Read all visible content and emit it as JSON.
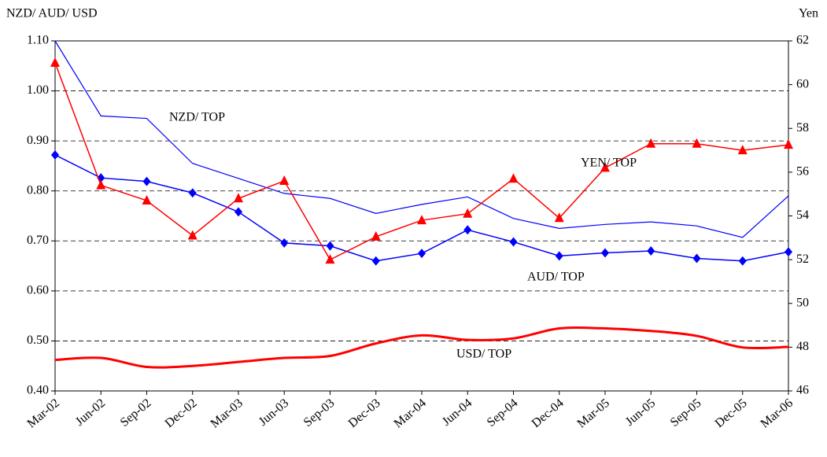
{
  "chart_data": {
    "type": "line",
    "ylabel": "NZD/ AUD/ USD",
    "y2label": "Yen",
    "categories": [
      "Mar-02",
      "Jun-02",
      "Sep-02",
      "Dec-02",
      "Mar-03",
      "Jun-03",
      "Sep-03",
      "Dec-03",
      "Mar-04",
      "Jun-04",
      "Sep-04",
      "Dec-04",
      "Mar-05",
      "Jun-05",
      "Sep-05",
      "Dec-05",
      "Mar-06"
    ],
    "ylim": [
      0.4,
      1.1
    ],
    "yticks": [
      {
        "value": 0.4,
        "label": "0.40"
      },
      {
        "value": 0.5,
        "label": "0.50"
      },
      {
        "value": 0.6,
        "label": "0.60"
      },
      {
        "value": 0.7,
        "label": "0.70"
      },
      {
        "value": 0.8,
        "label": "0.80"
      },
      {
        "value": 0.9,
        "label": "0.90"
      },
      {
        "value": 1.0,
        "label": "1.00"
      },
      {
        "value": 1.1,
        "label": "1.10"
      }
    ],
    "y2lim": [
      46,
      62
    ],
    "y2ticks": [
      46,
      48,
      50,
      52,
      54,
      56,
      58,
      60,
      62
    ],
    "grid": true,
    "series": [
      {
        "name": "NZD/ TOP",
        "color": "#0000ff",
        "line_width": 1.2,
        "marker": null,
        "values": [
          1.1,
          0.95,
          0.945,
          0.855,
          0.825,
          0.795,
          0.785,
          0.755,
          0.773,
          0.788,
          0.745,
          0.725,
          0.733,
          0.738,
          0.73,
          0.707,
          0.79
        ]
      },
      {
        "name": "AUD/ TOP",
        "color": "#0000ff",
        "line_width": 1.5,
        "marker": "diamond",
        "values": [
          0.872,
          0.826,
          0.819,
          0.796,
          0.758,
          0.696,
          0.69,
          0.66,
          0.675,
          0.722,
          0.698,
          0.67,
          0.676,
          0.68,
          0.665,
          0.66,
          0.678
        ]
      },
      {
        "name": "USD/ TOP",
        "color": "#ff0000",
        "line_width": 3,
        "marker": null,
        "smooth": true,
        "values": [
          0.462,
          0.466,
          0.448,
          0.45,
          0.458,
          0.466,
          0.47,
          0.495,
          0.511,
          0.502,
          0.505,
          0.525,
          0.525,
          0.52,
          0.51,
          0.487,
          0.488
        ]
      },
      {
        "name": "YEN/ TOP",
        "color": "#ff0000",
        "line_width": 1.5,
        "marker": "triangle",
        "axis": "y2",
        "values": [
          61.0,
          55.4,
          54.7,
          53.1,
          54.8,
          55.6,
          52.0,
          53.05,
          53.8,
          54.1,
          55.7,
          53.9,
          56.2,
          57.3,
          57.3,
          57.0,
          57.25
        ]
      }
    ]
  }
}
